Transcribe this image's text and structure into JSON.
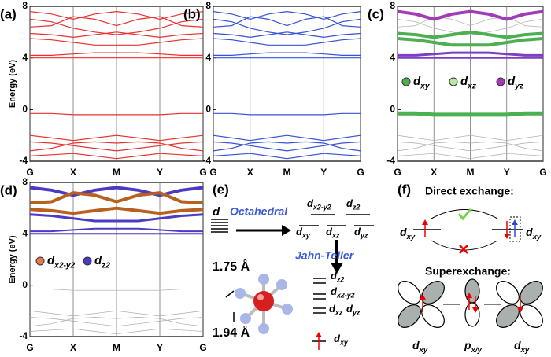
{
  "chart_data": [
    {
      "type": "line",
      "label": "(a)",
      "ylabel": "Energy (eV)",
      "x": [
        0,
        0.5,
        1,
        1.5,
        2,
        2.5,
        3,
        3.5,
        4
      ],
      "xlim": [
        0,
        4
      ],
      "xticks": [
        {
          "value": 0,
          "label": "G"
        },
        {
          "value": 1,
          "label": "X"
        },
        {
          "value": 2,
          "label": "M"
        },
        {
          "value": 3,
          "label": "Y"
        },
        {
          "value": 4,
          "label": "G"
        }
      ],
      "ylim": [
        -4,
        8
      ],
      "yticks": [
        -4,
        0,
        4,
        8
      ],
      "grid": true,
      "series": [
        {
          "color": "#e8312f",
          "values": [
            7.6,
            7.4,
            7.0,
            7.4,
            7.6,
            7.4,
            7.0,
            7.4,
            7.6
          ]
        },
        {
          "color": "#e8312f",
          "values": [
            7.0,
            6.8,
            6.3,
            6.0,
            5.8,
            6.0,
            6.3,
            6.8,
            7.0
          ]
        },
        {
          "color": "#e8312f",
          "values": [
            6.4,
            6.5,
            7.2,
            7.0,
            6.5,
            7.0,
            7.2,
            6.5,
            6.4
          ]
        },
        {
          "color": "#e8312f",
          "values": [
            5.9,
            5.8,
            5.6,
            5.8,
            6.0,
            5.8,
            5.6,
            5.8,
            5.9
          ]
        },
        {
          "color": "#e8312f",
          "values": [
            5.5,
            5.4,
            5.2,
            5.0,
            5.0,
            5.0,
            5.2,
            5.4,
            5.5
          ]
        },
        {
          "color": "#e8312f",
          "values": [
            4.2,
            4.2,
            4.3,
            4.4,
            4.4,
            4.4,
            4.3,
            4.2,
            4.2
          ]
        },
        {
          "color": "#e8312f",
          "values": [
            4.0,
            4.0,
            4.0,
            4.0,
            4.0,
            4.0,
            4.0,
            4.0,
            4.0
          ]
        },
        {
          "color": "#e8312f",
          "values": [
            -0.3,
            -0.3,
            -0.4,
            -0.4,
            -0.4,
            -0.4,
            -0.4,
            -0.3,
            -0.3
          ]
        },
        {
          "color": "#e8312f",
          "values": [
            -2.0,
            -2.2,
            -2.4,
            -2.2,
            -2.0,
            -2.2,
            -2.4,
            -2.2,
            -2.0
          ]
        },
        {
          "color": "#e8312f",
          "values": [
            -2.5,
            -2.6,
            -2.8,
            -3.0,
            -3.2,
            -3.0,
            -2.8,
            -2.6,
            -2.5
          ]
        },
        {
          "color": "#e8312f",
          "values": [
            -3.2,
            -3.0,
            -2.6,
            -2.5,
            -2.6,
            -2.5,
            -2.6,
            -3.0,
            -3.2
          ]
        },
        {
          "color": "#e8312f",
          "values": [
            -3.6,
            -3.5,
            -3.4,
            -3.6,
            -3.8,
            -3.6,
            -3.4,
            -3.5,
            -3.6
          ]
        }
      ]
    },
    {
      "type": "line",
      "label": "(b)",
      "x": [
        0,
        0.5,
        1,
        1.5,
        2,
        2.5,
        3,
        3.5,
        4
      ],
      "xlim": [
        0,
        4
      ],
      "xticks": [
        {
          "value": 0,
          "label": "G"
        },
        {
          "value": 1,
          "label": "X"
        },
        {
          "value": 2,
          "label": "M"
        },
        {
          "value": 3,
          "label": "Y"
        },
        {
          "value": 4,
          "label": "G"
        }
      ],
      "ylim": [
        -4,
        8
      ],
      "yticks": [
        -4,
        0,
        4,
        8
      ],
      "grid": true,
      "series": [
        {
          "color": "#3752d6",
          "values": [
            7.6,
            7.4,
            7.0,
            7.4,
            7.6,
            7.4,
            7.0,
            7.4,
            7.6
          ]
        },
        {
          "color": "#3752d6",
          "values": [
            7.0,
            6.8,
            6.3,
            6.0,
            5.8,
            6.0,
            6.3,
            6.8,
            7.0
          ]
        },
        {
          "color": "#3752d6",
          "values": [
            6.4,
            6.5,
            7.2,
            7.0,
            6.5,
            7.0,
            7.2,
            6.5,
            6.4
          ]
        },
        {
          "color": "#3752d6",
          "values": [
            5.9,
            5.8,
            5.6,
            5.8,
            6.0,
            5.8,
            5.6,
            5.8,
            5.9
          ]
        },
        {
          "color": "#3752d6",
          "values": [
            5.5,
            5.4,
            5.2,
            5.0,
            5.0,
            5.0,
            5.2,
            5.4,
            5.5
          ]
        },
        {
          "color": "#3752d6",
          "values": [
            4.2,
            4.2,
            4.3,
            4.4,
            4.4,
            4.4,
            4.3,
            4.2,
            4.2
          ]
        },
        {
          "color": "#3752d6",
          "values": [
            4.0,
            4.0,
            4.0,
            4.0,
            4.0,
            4.0,
            4.0,
            4.0,
            4.0
          ]
        },
        {
          "color": "#3752d6",
          "values": [
            -0.3,
            -0.3,
            -0.4,
            -0.4,
            -0.4,
            -0.4,
            -0.4,
            -0.3,
            -0.3
          ]
        },
        {
          "color": "#3752d6",
          "values": [
            -2.0,
            -2.2,
            -2.4,
            -2.2,
            -2.0,
            -2.2,
            -2.4,
            -2.2,
            -2.0
          ]
        },
        {
          "color": "#3752d6",
          "values": [
            -2.5,
            -2.6,
            -2.8,
            -3.0,
            -3.2,
            -3.0,
            -2.8,
            -2.6,
            -2.5
          ]
        },
        {
          "color": "#3752d6",
          "values": [
            -3.2,
            -3.0,
            -2.6,
            -2.5,
            -2.6,
            -2.5,
            -2.6,
            -3.0,
            -3.2
          ]
        },
        {
          "color": "#3752d6",
          "values": [
            -3.6,
            -3.5,
            -3.4,
            -3.6,
            -3.8,
            -3.6,
            -3.4,
            -3.5,
            -3.6
          ]
        }
      ]
    },
    {
      "type": "line",
      "label": "(c)",
      "x": [
        0,
        0.5,
        1,
        1.5,
        2,
        2.5,
        3,
        3.5,
        4
      ],
      "xlim": [
        0,
        4
      ],
      "xticks": [
        {
          "value": 0,
          "label": "G"
        },
        {
          "value": 1,
          "label": "X"
        },
        {
          "value": 2,
          "label": "M"
        },
        {
          "value": 3,
          "label": "Y"
        },
        {
          "value": 4,
          "label": "G"
        }
      ],
      "ylim": [
        -4,
        8
      ],
      "yticks": [
        -4,
        0,
        4,
        8
      ],
      "grid": true,
      "legend": [
        {
          "main": "d",
          "sub": "xy",
          "color": "#4caf50"
        },
        {
          "main": "d",
          "sub": "xz",
          "color": "#b5e8a0"
        },
        {
          "main": "d",
          "sub": "yz",
          "color": "#a23bb5"
        }
      ],
      "series": [
        {
          "color": "#aaaaaa",
          "line_width": 0.7,
          "values": [
            7.0,
            6.8,
            6.3,
            6.0,
            5.8,
            6.0,
            6.3,
            6.8,
            7.0
          ]
        },
        {
          "color": "#aaaaaa",
          "line_width": 0.7,
          "values": [
            6.4,
            6.5,
            7.2,
            7.0,
            6.5,
            7.0,
            7.2,
            6.5,
            6.4
          ]
        },
        {
          "color": "#aaaaaa",
          "line_width": 0.7,
          "values": [
            -2.0,
            -2.2,
            -2.4,
            -2.2,
            -2.0,
            -2.2,
            -2.4,
            -2.2,
            -2.0
          ]
        },
        {
          "color": "#aaaaaa",
          "line_width": 0.7,
          "values": [
            -2.5,
            -2.6,
            -2.8,
            -3.0,
            -3.2,
            -3.0,
            -2.8,
            -2.6,
            -2.5
          ]
        },
        {
          "color": "#aaaaaa",
          "line_width": 0.7,
          "values": [
            -3.2,
            -3.0,
            -2.6,
            -2.5,
            -2.6,
            -2.5,
            -2.6,
            -3.0,
            -3.2
          ]
        },
        {
          "color": "#aaaaaa",
          "line_width": 0.7,
          "values": [
            -3.6,
            -3.5,
            -3.4,
            -3.6,
            -3.8,
            -3.6,
            -3.4,
            -3.5,
            -3.6
          ]
        },
        {
          "color": "#a23bb5",
          "line_width": 4,
          "values": [
            7.6,
            7.4,
            7.0,
            7.4,
            7.6,
            7.4,
            7.0,
            7.4,
            7.6
          ]
        },
        {
          "color": "#4caf50",
          "line_width": 4,
          "values": [
            5.9,
            5.8,
            5.6,
            5.8,
            6.0,
            5.8,
            5.6,
            5.8,
            5.9
          ]
        },
        {
          "color": "#4caf50",
          "line_width": 4,
          "values": [
            5.5,
            5.4,
            5.2,
            5.0,
            5.0,
            5.0,
            5.2,
            5.4,
            5.5
          ]
        },
        {
          "color": "#7c3fbf",
          "line_width": 3,
          "values": [
            4.2,
            4.2,
            4.3,
            4.4,
            4.4,
            4.4,
            4.3,
            4.2,
            4.2
          ]
        },
        {
          "color": "#7c3fbf",
          "line_width": 2,
          "values": [
            4.0,
            4.0,
            4.0,
            4.0,
            4.0,
            4.0,
            4.0,
            4.0,
            4.0
          ]
        },
        {
          "color": "#4caf50",
          "line_width": 5,
          "values": [
            -0.3,
            -0.3,
            -0.4,
            -0.4,
            -0.4,
            -0.4,
            -0.4,
            -0.3,
            -0.3
          ]
        }
      ]
    },
    {
      "type": "line",
      "label": "(d)",
      "ylabel": "Energy (eV)",
      "x": [
        0,
        0.5,
        1,
        1.5,
        2,
        2.5,
        3,
        3.5,
        4
      ],
      "xlim": [
        0,
        4
      ],
      "xticks": [
        {
          "value": 0,
          "label": "G"
        },
        {
          "value": 1,
          "label": "X"
        },
        {
          "value": 2,
          "label": "M"
        },
        {
          "value": 3,
          "label": "Y"
        },
        {
          "value": 4,
          "label": "G"
        }
      ],
      "ylim": [
        -4,
        8
      ],
      "yticks": [
        -4,
        0,
        4,
        8
      ],
      "grid": true,
      "legend": [
        {
          "main": "d",
          "sub": "x2-y2",
          "color": "#e87a4a"
        },
        {
          "main": "d",
          "sub": "z2",
          "color": "#4b3bc4"
        }
      ],
      "series": [
        {
          "color": "#aaaaaa",
          "line_width": 0.7,
          "values": [
            -0.3,
            -0.3,
            -0.4,
            -0.4,
            -0.4,
            -0.4,
            -0.4,
            -0.3,
            -0.3
          ]
        },
        {
          "color": "#aaaaaa",
          "line_width": 0.7,
          "values": [
            -2.0,
            -2.2,
            -2.4,
            -2.2,
            -2.0,
            -2.2,
            -2.4,
            -2.2,
            -2.0
          ]
        },
        {
          "color": "#aaaaaa",
          "line_width": 0.7,
          "values": [
            -2.5,
            -2.6,
            -2.8,
            -3.0,
            -3.2,
            -3.0,
            -2.8,
            -2.6,
            -2.5
          ]
        },
        {
          "color": "#aaaaaa",
          "line_width": 0.7,
          "values": [
            -3.2,
            -3.0,
            -2.6,
            -2.5,
            -2.6,
            -2.5,
            -2.6,
            -3.0,
            -3.2
          ]
        },
        {
          "color": "#aaaaaa",
          "line_width": 0.7,
          "values": [
            -3.6,
            -3.5,
            -3.4,
            -3.6,
            -3.8,
            -3.6,
            -3.4,
            -3.5,
            -3.6
          ]
        },
        {
          "color": "#4b3bc4",
          "line_width": 4,
          "values": [
            7.6,
            7.4,
            7.0,
            7.4,
            7.6,
            7.4,
            7.0,
            7.4,
            7.6
          ]
        },
        {
          "color": "#b8601e",
          "line_width": 4,
          "values": [
            6.4,
            6.5,
            7.2,
            7.0,
            6.5,
            7.0,
            7.2,
            6.5,
            6.4
          ]
        },
        {
          "color": "#b8601e",
          "line_width": 4,
          "values": [
            5.9,
            5.8,
            5.6,
            5.8,
            6.0,
            5.8,
            5.6,
            5.8,
            5.9
          ]
        },
        {
          "color": "#4b3bc4",
          "line_width": 3,
          "values": [
            5.5,
            5.4,
            5.2,
            5.0,
            5.0,
            5.0,
            5.2,
            5.4,
            5.5
          ]
        },
        {
          "color": "#4b3bc4",
          "line_width": 2,
          "values": [
            4.2,
            4.2,
            4.3,
            4.4,
            4.4,
            4.4,
            4.3,
            4.2,
            4.2
          ]
        },
        {
          "color": "#4b3bc4",
          "line_width": 2,
          "values": [
            4.0,
            4.0,
            4.0,
            4.0,
            4.0,
            4.0,
            4.0,
            4.0,
            4.0
          ]
        }
      ]
    }
  ],
  "diagram_e": {
    "label": "(e)",
    "d": "d",
    "octahedral": "Octahedral",
    "jahn_teller": "Jahn-Teller",
    "eg": [
      {
        "main": "d",
        "sub": "x2-y2"
      },
      {
        "main": "d",
        "sub": "z2"
      }
    ],
    "t2g": [
      {
        "main": "d",
        "sub": "xy"
      },
      {
        "main": "d",
        "sub": "xz"
      },
      {
        "main": "d",
        "sub": "yz"
      }
    ],
    "split": [
      {
        "main": "d",
        "sub": "z2"
      },
      {
        "main": "d",
        "sub": "x2-y2"
      },
      {
        "main": "d",
        "sub": "xz"
      },
      {
        "main": "d",
        "sub": "yz"
      },
      {
        "main": "d",
        "sub": "xy"
      }
    ],
    "bond_short": "1.75 Å",
    "bond_long": "1.94 Å"
  },
  "diagram_f": {
    "label": "(f)",
    "direct": "Direct exchange:",
    "super": "Superexchange:",
    "direct_left": {
      "main": "d",
      "sub": "xy"
    },
    "direct_right": {
      "main": "d",
      "sub": "xy"
    },
    "orbitals": [
      {
        "main": "d",
        "sub": "xy"
      },
      {
        "main": "p",
        "sub": "x/y"
      },
      {
        "main": "d",
        "sub": "xy"
      }
    ]
  }
}
